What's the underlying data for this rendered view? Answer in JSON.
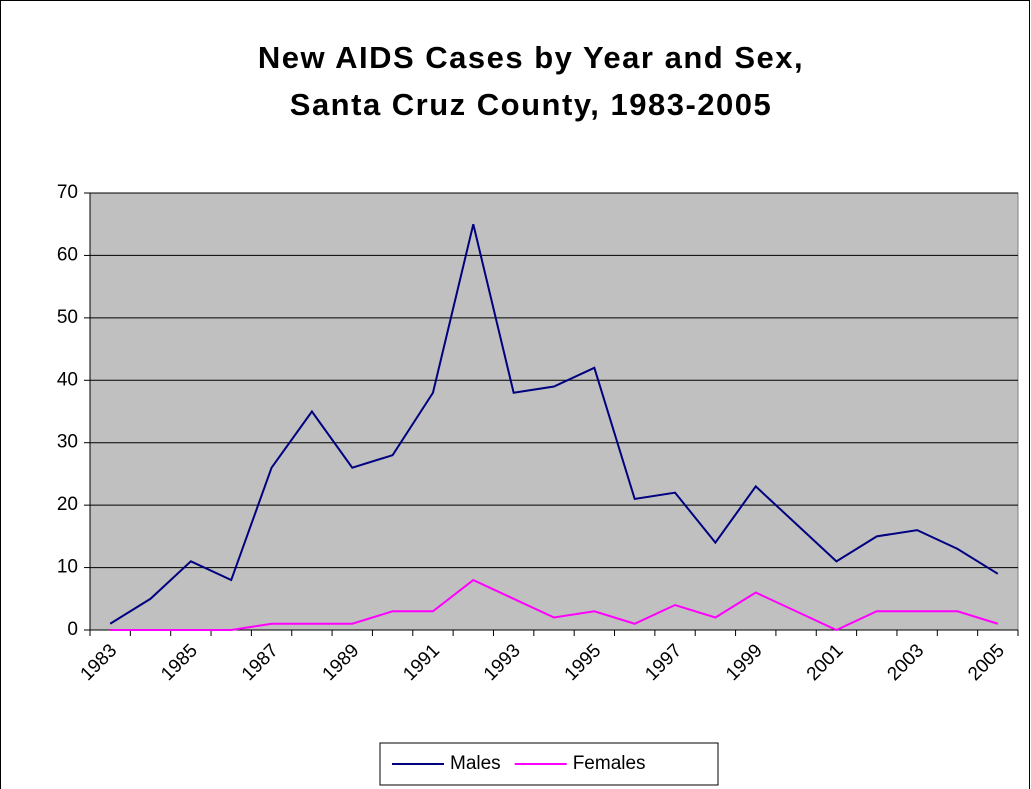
{
  "chart_data": {
    "type": "line",
    "title": [
      "New AIDS Cases by Year and Sex,",
      "Santa Cruz County, 1983-2005"
    ],
    "categories": [
      "1983",
      null,
      "1985",
      null,
      "1987",
      null,
      "1989",
      null,
      "1991",
      null,
      "1993",
      null,
      "1995",
      null,
      "1997",
      null,
      "1999",
      null,
      "2001",
      null,
      "2003",
      null,
      "2005"
    ],
    "series": [
      {
        "name": "Males",
        "color": "#000080",
        "values": [
          1,
          5,
          11,
          8,
          26,
          35,
          26,
          28,
          38,
          65,
          38,
          39,
          42,
          21,
          22,
          14,
          23,
          17,
          11,
          15,
          16,
          13,
          9
        ]
      },
      {
        "name": "Females",
        "color": "#ff00ff",
        "values": [
          0,
          0,
          0,
          0,
          1,
          1,
          1,
          3,
          3,
          8,
          5,
          2,
          3,
          1,
          4,
          2,
          6,
          3,
          0,
          3,
          3,
          3,
          1
        ]
      }
    ],
    "ylim": [
      0,
      70
    ],
    "yticks": [
      0,
      10,
      20,
      30,
      40,
      50,
      60,
      70
    ],
    "grid": true,
    "plot_background": "#c0c0c0",
    "legend": "bottom"
  }
}
